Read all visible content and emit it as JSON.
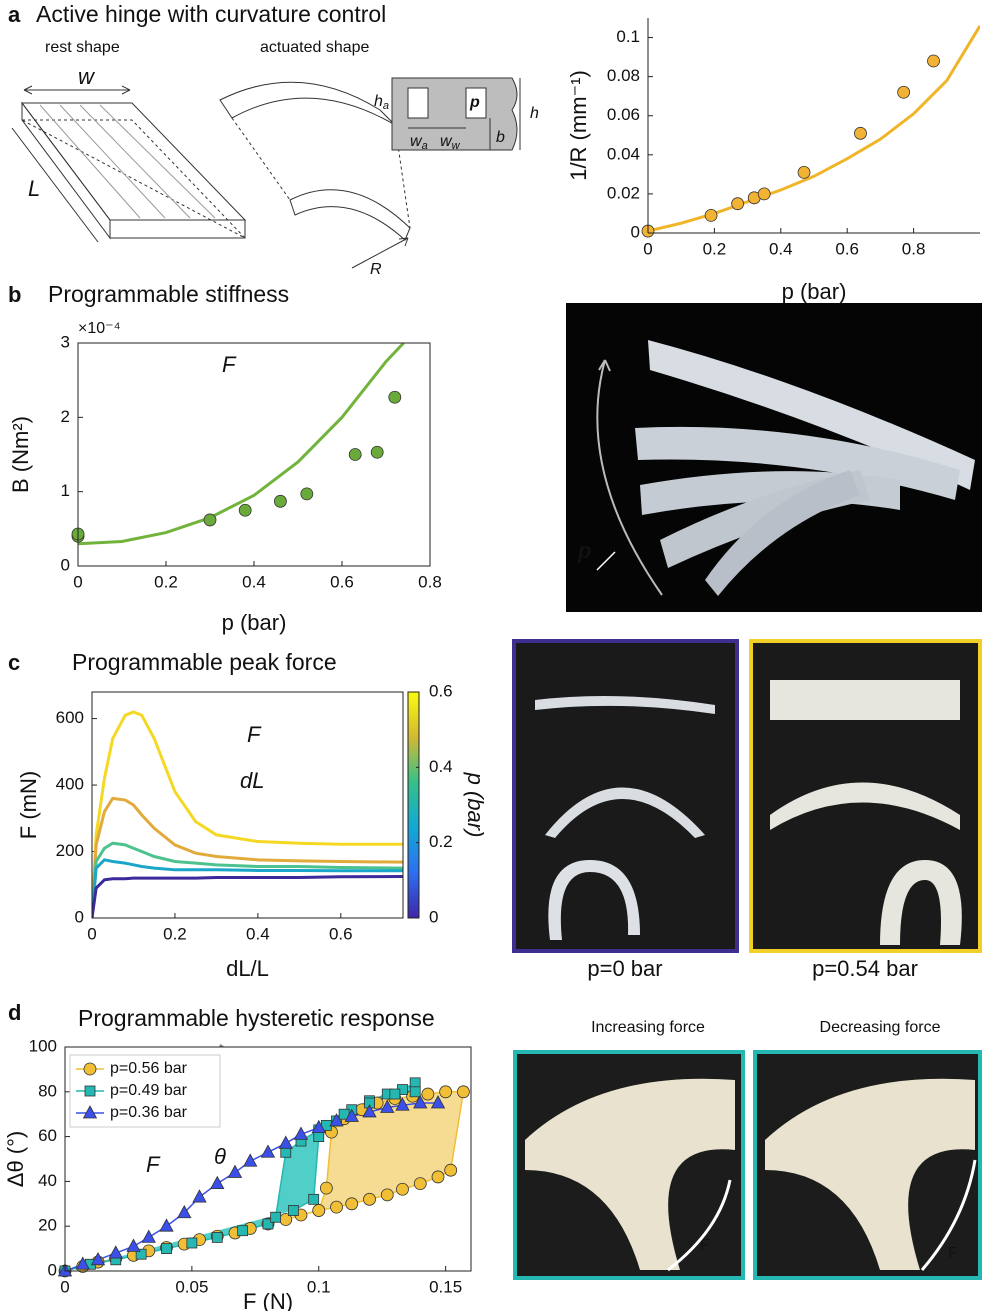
{
  "figure": {
    "panels": [
      {
        "label": "a",
        "title": "Active hinge with curvature control"
      },
      {
        "label": "b",
        "title": "Programmable stiffness"
      },
      {
        "label": "c",
        "title": "Programmable peak force"
      },
      {
        "label": "d",
        "title": "Programmable hysteretic response"
      }
    ],
    "diagram": {
      "rest": "rest shape",
      "actuated": "actuated shape",
      "w": "w",
      "L": "L",
      "R": "R",
      "h": "h",
      "ha": [
        "h",
        "a"
      ],
      "p": "p",
      "wa": [
        "w",
        "a"
      ],
      "ww": [
        "w",
        "w"
      ],
      "b": "b"
    },
    "photos": {
      "b_label": "p",
      "c_left": "p=0 bar",
      "c_right": "p=0.54 bar",
      "d_left": "Increasing force",
      "d_right": "Decreasing force",
      "d_left_force": "F",
      "d_right_force": "F"
    }
  },
  "chart_data": [
    {
      "type": "scatter",
      "xlabel": "p (bar)",
      "ylabel": "1/R (mm⁻¹)",
      "box": false,
      "xlim": [
        0,
        1
      ],
      "xticks": [
        0,
        0.2,
        0.4,
        0.6,
        0.8
      ],
      "ylim": [
        0,
        0.11
      ],
      "yticks": [
        0,
        0.02,
        0.04,
        0.06,
        0.08,
        0.1
      ],
      "series": [
        {
          "mode": "line",
          "color": "#f0b428",
          "x": [
            0,
            0.1,
            0.2,
            0.3,
            0.4,
            0.5,
            0.6,
            0.7,
            0.8,
            0.9,
            1
          ],
          "values": [
            0.001,
            0.005,
            0.01,
            0.016,
            0.022,
            0.029,
            0.038,
            0.048,
            0.061,
            0.078,
            0.106
          ]
        },
        {
          "mode": "markers",
          "marker": "circle",
          "color": "#f2b233",
          "x": [
            0,
            0.19,
            0.27,
            0.32,
            0.35,
            0.47,
            0.64,
            0.77,
            0.86
          ],
          "values": [
            0.001,
            0.009,
            0.015,
            0.018,
            0.02,
            0.031,
            0.051,
            0.072,
            0.088
          ]
        }
      ]
    },
    {
      "type": "scatter",
      "xlabel": "p (bar)",
      "ylabel": "B (Nm²)",
      "exponent": "×10⁻⁴",
      "box": true,
      "xlim": [
        0,
        0.8
      ],
      "xticks": [
        0,
        0.2,
        0.4,
        0.6,
        0.8
      ],
      "ylim": [
        0,
        3
      ],
      "yticks": [
        0,
        1,
        2,
        3
      ],
      "annotations": [
        "F"
      ],
      "series": [
        {
          "mode": "line",
          "color": "#72b33c",
          "x": [
            0,
            0.1,
            0.2,
            0.3,
            0.4,
            0.5,
            0.6,
            0.7,
            0.74
          ],
          "values": [
            0.3,
            0.33,
            0.45,
            0.65,
            0.95,
            1.4,
            2.0,
            2.75,
            3.0
          ]
        },
        {
          "mode": "markers",
          "marker": "circle",
          "color": "#6aaa3a",
          "x": [
            0,
            0,
            0.3,
            0.38,
            0.46,
            0.52,
            0.63,
            0.68,
            0.72
          ],
          "values": [
            0.4,
            0.43,
            0.62,
            0.75,
            0.87,
            0.97,
            1.5,
            1.53,
            2.27
          ]
        }
      ]
    },
    {
      "type": "line",
      "xlabel": "dL/L",
      "ylabel": "F (mN)",
      "box": true,
      "xlim": [
        0,
        0.75
      ],
      "xticks": [
        0,
        0.2,
        0.4,
        0.6
      ],
      "ylim": [
        0,
        680
      ],
      "yticks": [
        0,
        200,
        400,
        600
      ],
      "annotations": [
        "F",
        "dL"
      ],
      "colorbar": {
        "label": "p (bar)",
        "lim": [
          0,
          0.6
        ],
        "ticks": [
          0,
          0.2,
          0.4,
          0.6
        ]
      },
      "x": [
        0,
        0.01,
        0.03,
        0.05,
        0.08,
        0.1,
        0.12,
        0.15,
        0.2,
        0.25,
        0.3,
        0.4,
        0.5,
        0.6,
        0.75
      ],
      "series": [
        {
          "mode": "line",
          "color": "#f5d823",
          "values": [
            0,
            250,
            420,
            540,
            610,
            620,
            610,
            540,
            380,
            290,
            250,
            230,
            225,
            222,
            222
          ]
        },
        {
          "mode": "line",
          "color": "#e2aa3a",
          "values": [
            0,
            220,
            320,
            360,
            355,
            340,
            310,
            270,
            220,
            195,
            185,
            175,
            172,
            170,
            168
          ]
        },
        {
          "mode": "line",
          "color": "#4cc38e",
          "values": [
            0,
            170,
            210,
            225,
            220,
            210,
            200,
            185,
            170,
            165,
            160,
            155,
            155,
            152,
            150
          ]
        },
        {
          "mode": "line",
          "color": "#1aa6c9",
          "values": [
            0,
            150,
            175,
            170,
            165,
            160,
            155,
            150,
            145,
            145,
            145,
            143,
            143,
            142,
            142
          ]
        },
        {
          "mode": "line",
          "color": "#3a2a9c",
          "values": [
            0,
            90,
            115,
            118,
            118,
            120,
            120,
            120,
            120,
            120,
            122,
            122,
            122,
            124,
            125
          ]
        }
      ]
    },
    {
      "type": "line",
      "xlabel": "F (N)",
      "ylabel": "Δθ (°)",
      "box": true,
      "legend": "upper left",
      "xlim": [
        0,
        0.16
      ],
      "xticks": [
        0,
        0.05,
        0.1,
        0.15
      ],
      "ylim": [
        0,
        100
      ],
      "yticks": [
        0,
        20,
        40,
        60,
        80,
        100
      ],
      "annotations": [
        "F",
        "θ"
      ],
      "series": [
        {
          "name": "p=0.56 bar",
          "mode": "line+markers",
          "marker": "circle",
          "color": "#f0bf35",
          "fill_color": "#f6dc92",
          "x": [
            0,
            0.007,
            0.013,
            0.02,
            0.027,
            0.033,
            0.04,
            0.047,
            0.053,
            0.06,
            0.067,
            0.073,
            0.08,
            0.087,
            0.093,
            0.1,
            0.107,
            0.113,
            0.12,
            0.127,
            0.133,
            0.14,
            0.147,
            0.152,
            0.157,
            0.15,
            0.143,
            0.137,
            0.13,
            0.123,
            0.117,
            0.11,
            0.105,
            0.103,
            0.1
          ],
          "values": [
            0,
            2,
            4,
            5.5,
            7,
            9,
            10.5,
            12,
            14,
            15.5,
            17,
            19,
            21,
            23,
            25,
            27,
            28.5,
            30,
            32,
            34,
            36.5,
            39,
            42,
            45,
            80,
            80,
            79,
            78,
            77,
            75,
            72,
            68,
            62,
            37,
            27
          ]
        },
        {
          "name": "p=0.49 bar",
          "mode": "line+markers",
          "marker": "square",
          "color": "#25b8b2",
          "fill_color": "#4fcfc7",
          "x": [
            0,
            0.01,
            0.02,
            0.03,
            0.04,
            0.05,
            0.06,
            0.07,
            0.08,
            0.083,
            0.087,
            0.093,
            0.1,
            0.107,
            0.113,
            0.12,
            0.127,
            0.133,
            0.138,
            0.138,
            0.13,
            0.12,
            0.11,
            0.103,
            0.1,
            0.098,
            0.09
          ],
          "values": [
            0,
            3,
            5,
            7.5,
            10,
            12.5,
            15,
            18,
            21,
            24,
            53,
            58,
            63,
            67,
            72,
            76,
            79,
            81,
            84,
            80,
            79,
            75,
            70,
            65,
            60,
            32,
            27
          ]
        },
        {
          "name": "p=0.36 bar",
          "mode": "line+markers",
          "marker": "triangle",
          "color": "#3b50e8",
          "x": [
            0,
            0.007,
            0.013,
            0.02,
            0.027,
            0.033,
            0.04,
            0.047,
            0.053,
            0.06,
            0.067,
            0.073,
            0.08,
            0.087,
            0.093,
            0.1,
            0.107,
            0.113,
            0.12,
            0.127,
            0.133,
            0.14,
            0.147
          ],
          "values": [
            0,
            3,
            5,
            8,
            11,
            15,
            20,
            26,
            33,
            39,
            44,
            49,
            53,
            57,
            61,
            64,
            67,
            69,
            71,
            73,
            74,
            75,
            75
          ]
        }
      ]
    }
  ]
}
